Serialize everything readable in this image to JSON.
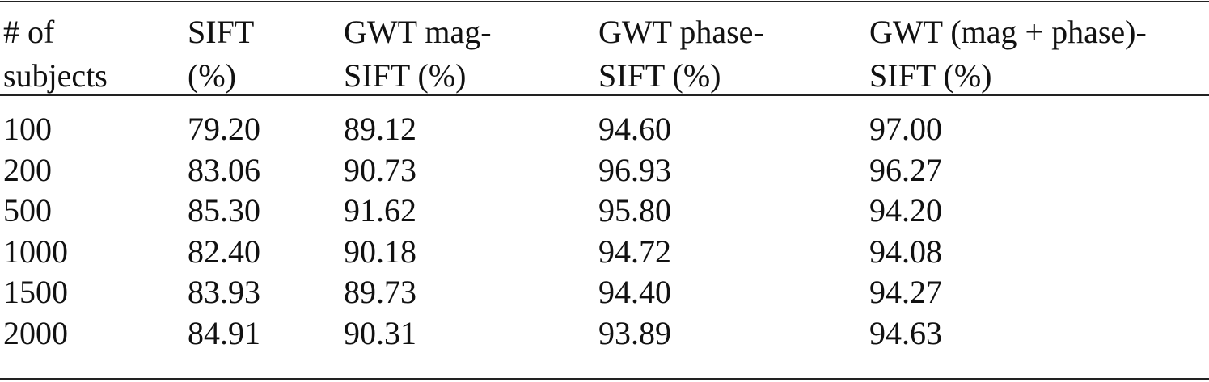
{
  "table": {
    "header": [
      [
        "# of",
        "subjects"
      ],
      [
        "SIFT",
        "(%)"
      ],
      [
        "GWT mag-",
        "SIFT (%)"
      ],
      [
        "GWT phase-",
        "SIFT (%)"
      ],
      [
        "GWT (mag + phase)-",
        "SIFT (%)"
      ]
    ],
    "rows": [
      [
        "100",
        "79.20",
        "89.12",
        "94.60",
        "97.00"
      ],
      [
        "200",
        "83.06",
        "90.73",
        "96.93",
        "96.27"
      ],
      [
        "500",
        "85.30",
        "91.62",
        "95.80",
        "94.20"
      ],
      [
        "1000",
        "82.40",
        "90.18",
        "94.72",
        "94.08"
      ],
      [
        "1500",
        "83.93",
        "89.73",
        "94.40",
        "94.27"
      ],
      [
        "2000",
        "84.91",
        "90.31",
        "93.89",
        "94.63"
      ]
    ]
  }
}
